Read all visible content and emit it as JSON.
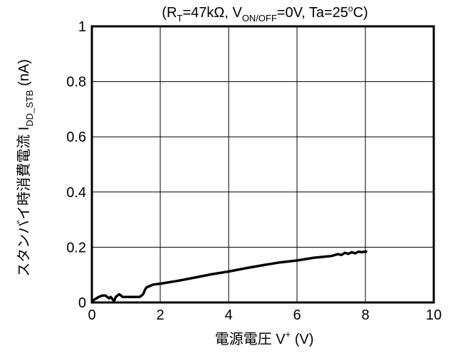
{
  "chart_data": {
    "type": "line",
    "title": "(R_T=47kΩ, V_ON/OFF=0V, Ta=25°C)",
    "title_parts": {
      "open": "(R",
      "rt_sub": "T",
      "mid1": "=47kΩ, V",
      "von_sub": "ON/OFF",
      "mid2": "=0V, Ta=25",
      "deg": "o",
      "close": "C)"
    },
    "xlabel": "電源電圧 V+ (V)",
    "xlabel_parts": {
      "main": "電源電圧 V",
      "sup": "+",
      "unit": " (V)"
    },
    "ylabel": "スタンバイ時消費電流 IDD_STB (nA)",
    "ylabel_parts": {
      "main": "スタンバイ時消費電流 I",
      "sub": "DD_STB",
      "unit": " (nA)"
    },
    "xlim": [
      0,
      10
    ],
    "ylim": [
      0,
      1
    ],
    "x_ticks": [
      "0",
      "2",
      "4",
      "6",
      "8",
      "10"
    ],
    "y_ticks": [
      "0",
      "0.2",
      "0.4",
      "0.6",
      "0.8",
      "1"
    ],
    "grid": true,
    "series": [
      {
        "color": "#000000",
        "x": [
          0,
          0.2,
          0.3,
          0.4,
          0.5,
          0.55,
          0.65,
          0.7,
          0.75,
          0.8,
          0.9,
          1.0,
          1.2,
          1.4,
          1.5,
          1.55,
          1.6,
          1.7,
          1.8,
          2.0,
          2.5,
          3.0,
          3.5,
          4.0,
          4.5,
          5.0,
          5.5,
          6.0,
          6.5,
          7.0,
          7.2,
          7.3,
          7.4,
          7.5,
          7.6,
          7.7,
          7.8,
          7.9,
          8.0,
          8.05
        ],
        "y": [
          0.005,
          0.02,
          0.025,
          0.025,
          0.015,
          0.02,
          0.005,
          0.02,
          0.025,
          0.03,
          0.02,
          0.02,
          0.02,
          0.02,
          0.03,
          0.045,
          0.055,
          0.06,
          0.065,
          0.068,
          0.078,
          0.09,
          0.102,
          0.112,
          0.124,
          0.135,
          0.145,
          0.152,
          0.162,
          0.168,
          0.175,
          0.172,
          0.18,
          0.176,
          0.182,
          0.178,
          0.184,
          0.182,
          0.185,
          0.183
        ]
      }
    ]
  }
}
